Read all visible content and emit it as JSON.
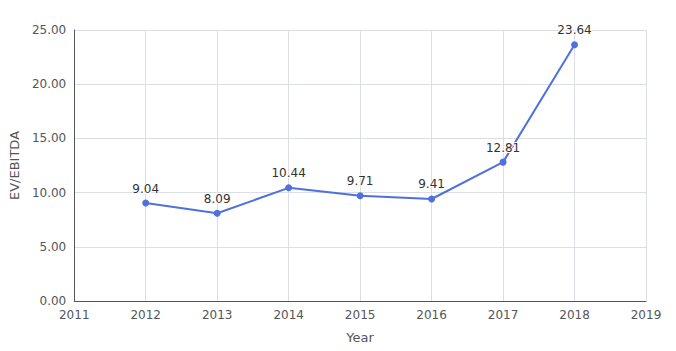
{
  "chart_data": {
    "type": "line",
    "x": [
      2012,
      2013,
      2014,
      2015,
      2016,
      2017,
      2018
    ],
    "values": [
      9.04,
      8.09,
      10.44,
      9.71,
      9.41,
      12.81,
      23.64
    ],
    "xlabel": "Year",
    "ylabel": "EV/EBITDA",
    "xlim": [
      2011,
      2019
    ],
    "xticks": [
      2011,
      2012,
      2013,
      2014,
      2015,
      2016,
      2017,
      2018,
      2019
    ],
    "ylim": [
      0,
      25
    ],
    "yticks": [
      {
        "value": 0,
        "label": "0.00"
      },
      {
        "value": 5,
        "label": "5.00"
      },
      {
        "value": 10,
        "label": "10.00"
      },
      {
        "value": 15,
        "label": "15.00"
      },
      {
        "value": 20,
        "label": "20.00"
      },
      {
        "value": 25,
        "label": "25.00"
      }
    ],
    "marker": "circle",
    "data_labels": true,
    "grid": true
  }
}
